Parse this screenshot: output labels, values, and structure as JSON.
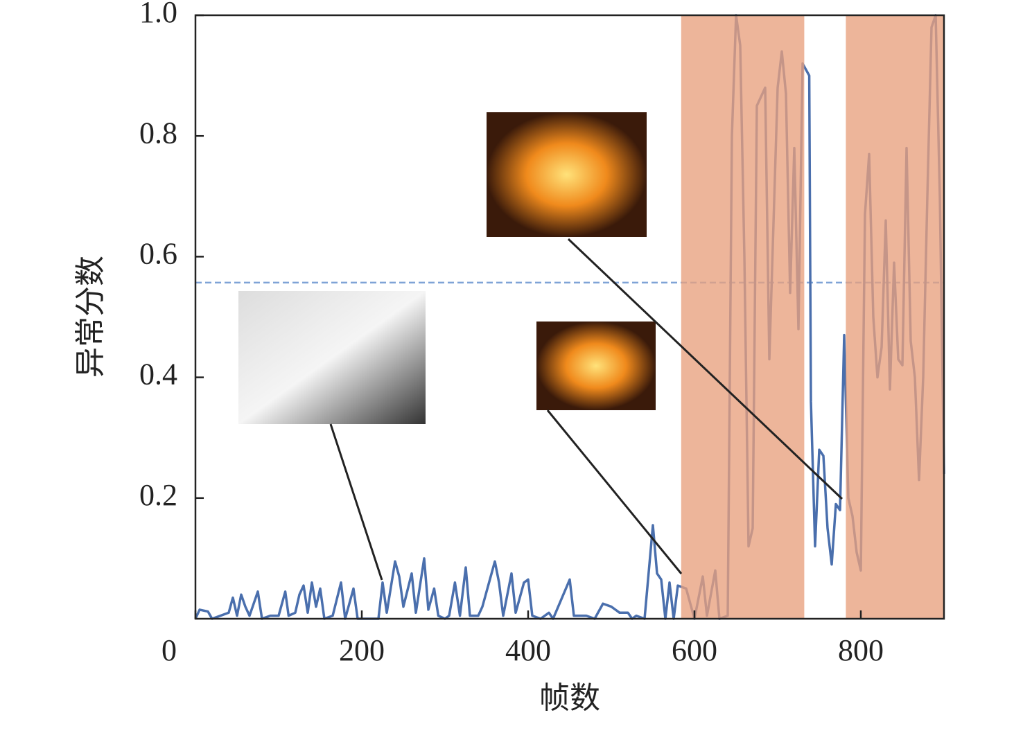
{
  "chart_data": {
    "type": "line",
    "x_label": "帧数",
    "y_label": "异常分数",
    "xlim": [
      0,
      900
    ],
    "ylim": [
      0,
      1
    ],
    "xticks": [
      0,
      200,
      400,
      600,
      800
    ],
    "yticks": [
      0.2,
      0.4,
      0.6,
      0.8,
      {
        "value": 1,
        "label": "1.0"
      }
    ],
    "threshold": 0.557,
    "threshold_color": "#7fa3d6",
    "highlight_ranges": [
      [
        584,
        732
      ],
      [
        782,
        900
      ]
    ],
    "highlight_color": "#e8a07e",
    "series": [
      {
        "color": "#4a6fad",
        "x": [
          0,
          5,
          15,
          20,
          30,
          40,
          45,
          50,
          55,
          60,
          65,
          75,
          80,
          90,
          100,
          108,
          112,
          120,
          125,
          130,
          135,
          140,
          145,
          150,
          155,
          165,
          175,
          180,
          190,
          195,
          210,
          220,
          225,
          230,
          240,
          245,
          250,
          260,
          265,
          275,
          280,
          287,
          292,
          300,
          305,
          312,
          318,
          325,
          330,
          340,
          345,
          360,
          365,
          370,
          380,
          385,
          395,
          400,
          405,
          415,
          425,
          430,
          450,
          455,
          470,
          480,
          490,
          500,
          510,
          520,
          525,
          530,
          540,
          550,
          555,
          560,
          565,
          570,
          575,
          580,
          590,
          600,
          610,
          615,
          625,
          630,
          640,
          645,
          650,
          655,
          660,
          665,
          670,
          675,
          685,
          690,
          700,
          705,
          710,
          715,
          720,
          725,
          730,
          738,
          740,
          745,
          750,
          755,
          760,
          765,
          770,
          775,
          780,
          785,
          790,
          795,
          800,
          805,
          810,
          815,
          820,
          825,
          830,
          835,
          840,
          845,
          850,
          855,
          860,
          865,
          870,
          875,
          880,
          885,
          890,
          895,
          900
        ],
        "values": [
          0,
          0.015,
          0.012,
          0,
          0.005,
          0.01,
          0.035,
          0.005,
          0.04,
          0.02,
          0.005,
          0.045,
          0,
          0.005,
          0.005,
          0.045,
          0.005,
          0.01,
          0.04,
          0.055,
          0.01,
          0.06,
          0.02,
          0.05,
          0,
          0.005,
          0.06,
          0,
          0.05,
          0,
          0,
          0,
          0.06,
          0.01,
          0.095,
          0.07,
          0.02,
          0.075,
          0.01,
          0.1,
          0.015,
          0.05,
          0.005,
          0,
          0.005,
          0.06,
          0.005,
          0.085,
          0.005,
          0.005,
          0.02,
          0.095,
          0.06,
          0.005,
          0.075,
          0.01,
          0.06,
          0.065,
          0.005,
          0,
          0.01,
          0,
          0.065,
          0.005,
          0.005,
          0,
          0.025,
          0.02,
          0.01,
          0.01,
          0,
          0.005,
          0,
          0.155,
          0.075,
          0.065,
          0,
          0.06,
          0,
          0.055,
          0.05,
          0,
          0.07,
          0.005,
          0.08,
          0,
          0.005,
          0.8,
          1,
          0.95,
          0.6,
          0.12,
          0.15,
          0.85,
          0.88,
          0.43,
          0.88,
          0.94,
          0.87,
          0.54,
          0.78,
          0.48,
          0.92,
          0.9,
          0.36,
          0.12,
          0.28,
          0.27,
          0.15,
          0.09,
          0.19,
          0.18,
          0.47,
          0.2,
          0.17,
          0.11,
          0.08,
          0.67,
          0.77,
          0.5,
          0.4,
          0.45,
          0.66,
          0.38,
          0.59,
          0.43,
          0.42,
          0.78,
          0.46,
          0.4,
          0.23,
          0.4,
          0.7,
          0.98,
          1,
          0.7,
          0.24
        ]
      }
    ]
  }
}
